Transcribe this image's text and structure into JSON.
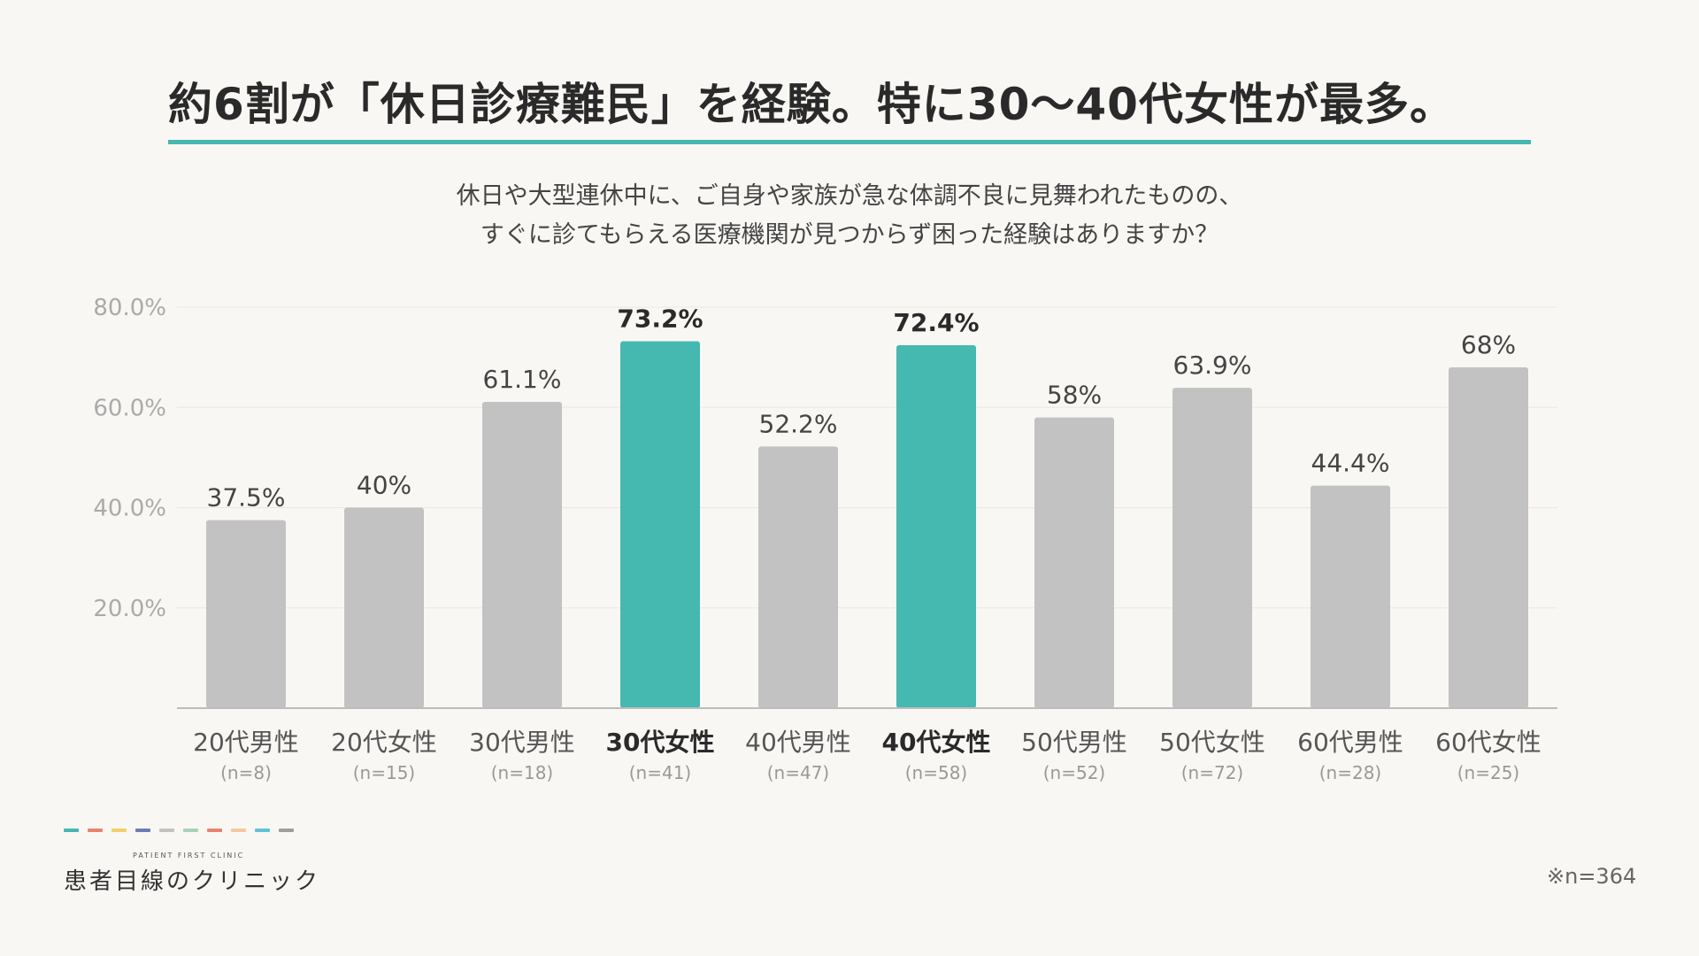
{
  "header": {
    "title": "約6割が「休日診療難民」を経験。特に30〜40代女性が最多。",
    "accent_color": "#45b8b0"
  },
  "question": {
    "line1": "休日や大型連休中に、ご自身や家族が急な体調不良に見舞われたものの、",
    "line2": "すぐに診てもらえる医療機関が見つからず困った経験はありますか？"
  },
  "chart_data": {
    "type": "bar",
    "categories": [
      "20代男性",
      "20代女性",
      "30代男性",
      "30代女性",
      "40代男性",
      "40代女性",
      "50代男性",
      "50代女性",
      "60代男性",
      "60代女性"
    ],
    "sample_sizes": [
      "(n=8)",
      "(n=15)",
      "(n=18)",
      "(n=41)",
      "(n=47)",
      "(n=58)",
      "(n=52)",
      "(n=72)",
      "(n=28)",
      "(n=25)"
    ],
    "values": [
      37.5,
      40,
      61.1,
      73.2,
      52.2,
      72.4,
      58,
      63.9,
      44.4,
      68
    ],
    "value_labels": [
      "37.5%",
      "40%",
      "61.1%",
      "73.2%",
      "52.2%",
      "72.4%",
      "58%",
      "63.9%",
      "44.4%",
      "68%"
    ],
    "highlighted": [
      false,
      false,
      false,
      true,
      false,
      true,
      false,
      false,
      false,
      false
    ],
    "ylim": [
      0,
      80
    ],
    "yticks": [
      20,
      40,
      60,
      80
    ],
    "ytick_labels": [
      "20.0%",
      "40.0%",
      "60.0%",
      "80.0%"
    ],
    "grid": true,
    "colors": {
      "default": "#c2c2c2",
      "highlight": "#45b8b0",
      "axis": "#bdbdbd",
      "grid": "#ebe8e3"
    }
  },
  "footer": {
    "logo_sub": "PATIENT FIRST CLINIC",
    "logo_name": "患者目線のクリニック",
    "logo_dash_colors": [
      "#45b8b0",
      "#e8836f",
      "#f2cf6b",
      "#6a7db5",
      "#c2c2c2",
      "#a6d3b6",
      "#e8836f",
      "#f5c9a0",
      "#5fc3d4",
      "#9e9e9e"
    ],
    "note": "※n=364"
  }
}
